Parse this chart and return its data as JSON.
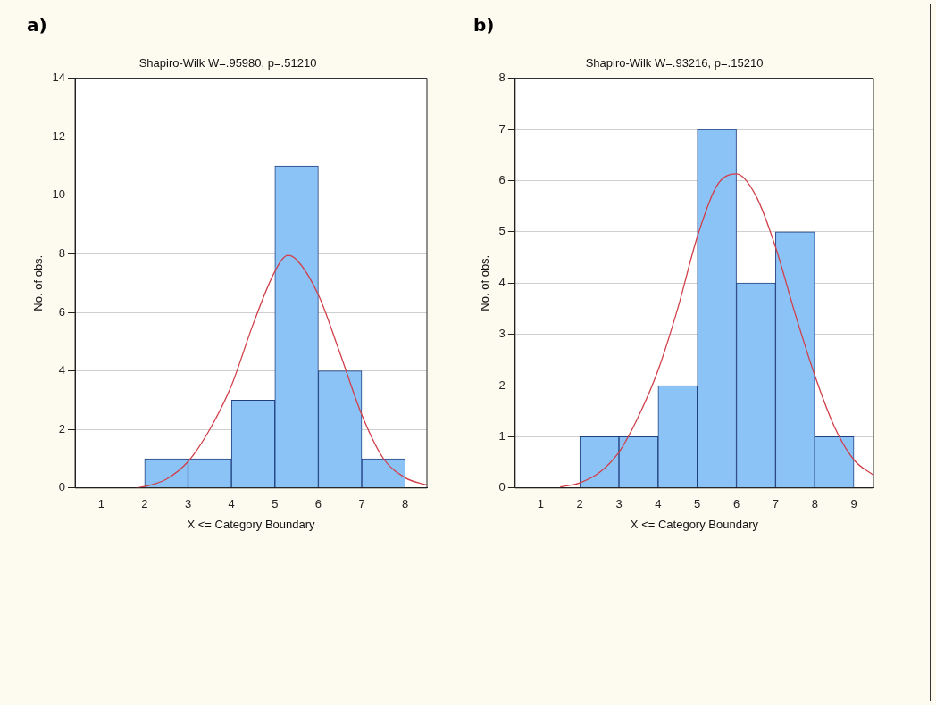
{
  "chart_data": [
    {
      "type": "histogram",
      "title": "Shapiro-Wilk W=.95980, p=.51210",
      "xlabel": "X <= Category Boundary",
      "ylabel": "No. of obs.",
      "annotations": [
        "a)"
      ],
      "bins": [
        2,
        3,
        4,
        5,
        6,
        7,
        8
      ],
      "values": [
        1,
        1,
        3,
        11,
        4,
        1
      ],
      "color": "#8cc3f7",
      "series": [
        {
          "type": "line",
          "color": "#d0404a",
          "x": [
            1.8,
            2,
            2.5,
            3,
            3.5,
            4,
            4.5,
            5,
            5.3,
            5.5,
            6,
            6.5,
            7,
            7.5,
            8,
            8.5
          ],
          "values": [
            0,
            0.05,
            0.3,
            0.9,
            2.0,
            3.5,
            5.6,
            7.4,
            7.95,
            7.8,
            6.6,
            4.6,
            2.5,
            1.0,
            0.35,
            0.1
          ]
        }
      ],
      "xlim": [
        0.4,
        8.5
      ],
      "xticks": [
        1,
        2,
        3,
        4,
        5,
        6,
        7,
        8
      ],
      "ylim": [
        0,
        14
      ],
      "yticks": [
        0,
        2,
        4,
        6,
        8,
        10,
        12,
        14
      ],
      "grid": "y",
      "legend": false
    },
    {
      "type": "histogram",
      "title": "Shapiro-Wilk W=.93216, p=.15210",
      "xlabel": "X <= Category Boundary",
      "ylabel": "No. of obs.",
      "annotations": [
        "b)"
      ],
      "bins": [
        2,
        3,
        4,
        5,
        6,
        7,
        8,
        9
      ],
      "values": [
        1,
        1,
        2,
        7,
        4,
        5,
        1
      ],
      "color": "#8cc3f7",
      "series": [
        {
          "type": "line",
          "color": "#d0404a",
          "x": [
            1.5,
            2,
            2.5,
            3,
            3.5,
            4,
            4.5,
            5,
            5.5,
            6,
            6.5,
            7,
            7.5,
            8,
            8.5,
            9,
            9.5
          ],
          "values": [
            0.02,
            0.1,
            0.3,
            0.7,
            1.4,
            2.3,
            3.5,
            4.9,
            5.9,
            6.13,
            5.7,
            4.7,
            3.4,
            2.2,
            1.2,
            0.55,
            0.25
          ]
        }
      ],
      "xlim": [
        0.35,
        9.5
      ],
      "xticks": [
        1,
        2,
        3,
        4,
        5,
        6,
        7,
        8,
        9
      ],
      "ylim": [
        0,
        8
      ],
      "yticks": [
        0,
        1,
        2,
        3,
        4,
        5,
        6,
        7,
        8
      ],
      "grid": "y",
      "legend": false
    }
  ]
}
